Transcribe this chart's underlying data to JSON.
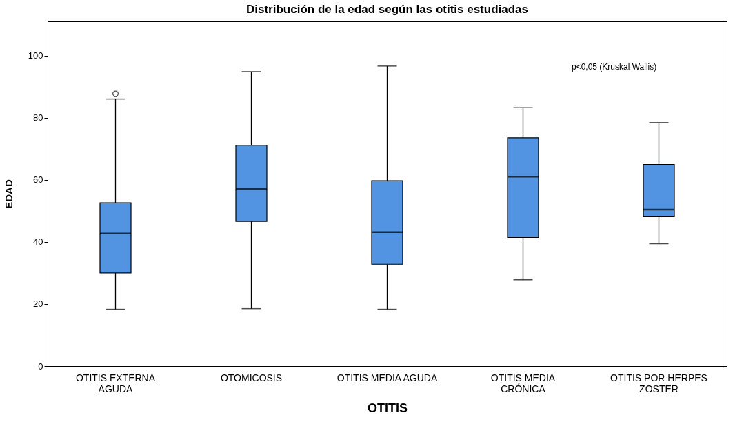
{
  "chart_data": {
    "type": "box",
    "title": "Distribución de la edad según las otitis estudiadas",
    "xlabel": "OTITIS",
    "ylabel": "EDAD",
    "categories": [
      "OTITIS EXTERNA AGUDA",
      "OTOMICOSIS",
      "OTITIS MEDIA AGUDA",
      "OTITIS MEDIA CRÓNICA",
      "OTITIS POR HERPES ZOSTER"
    ],
    "color": "#5294e2",
    "boxes": [
      {
        "low": 18.3,
        "q1": 30.0,
        "median": 42.7,
        "q3": 52.6,
        "high": 86.0,
        "outliers": [
          87.7
        ]
      },
      {
        "low": 18.5,
        "q1": 46.6,
        "median": 57.1,
        "q3": 71.1,
        "high": 94.8
      },
      {
        "low": 18.3,
        "q1": 32.8,
        "median": 43.1,
        "q3": 59.7,
        "high": 96.6
      },
      {
        "low": 27.8,
        "q1": 41.4,
        "median": 61.0,
        "q3": 73.5,
        "high": 83.2
      },
      {
        "low": 39.4,
        "q1": 48.1,
        "median": 50.4,
        "q3": 64.9,
        "high": 78.4
      }
    ],
    "ylim": [
      0,
      111
    ],
    "yticks": [
      0,
      20,
      40,
      60,
      80,
      100
    ],
    "grid": false,
    "annotations": [
      "p<0,05 (Kruskal Wallis)"
    ]
  }
}
